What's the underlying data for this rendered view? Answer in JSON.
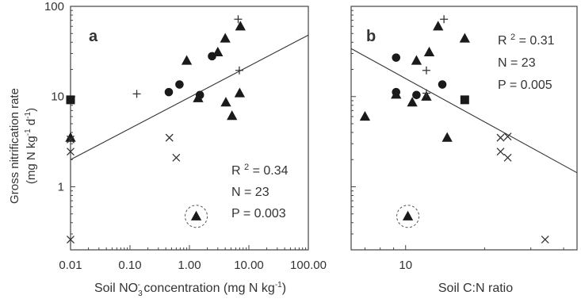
{
  "figure": {
    "shared_ylabel_line1": "Gross nitrification rate",
    "shared_ylabel_line2_parts": [
      "(mg N kg",
      "-1",
      " d",
      "-1",
      ")"
    ]
  },
  "chart_data": [
    {
      "type": "scatter",
      "panel_label": "a",
      "xscale": "log",
      "yscale": "log",
      "xlim": [
        0.01,
        100
      ],
      "ylim": [
        0.2,
        100
      ],
      "x_tick_labels": [
        "0.01",
        "0.10",
        "1.00",
        "10.00",
        "100.00"
      ],
      "x_tick_values": [
        0.01,
        0.1,
        1,
        10,
        100
      ],
      "y_tick_labels": [
        "1",
        "10",
        "100"
      ],
      "y_tick_values": [
        1,
        10,
        100
      ],
      "xlabel_parts": [
        "Soil NO",
        "3",
        "-",
        " concentration (mg N kg",
        "-1",
        ")"
      ],
      "ylabel": "Gross nitrification rate (mg N kg-1 d-1)",
      "stats": [
        "R2 = 0.34",
        "N = 23",
        "P = 0.003"
      ],
      "fit_line": [
        [
          0.01,
          2.0
        ],
        [
          100,
          48
        ]
      ],
      "circled_point": [
        1.3,
        0.47
      ],
      "points": [
        {
          "marker": "circle",
          "x": 0.45,
          "y": 11.2
        },
        {
          "marker": "circle",
          "x": 0.68,
          "y": 13.6
        },
        {
          "marker": "circle",
          "x": 1.5,
          "y": 10.4
        },
        {
          "marker": "circle",
          "x": 2.4,
          "y": 28
        },
        {
          "marker": "triangle",
          "x": 0.01,
          "y": 3.5
        },
        {
          "marker": "triangle",
          "x": 0.9,
          "y": 25
        },
        {
          "marker": "triangle",
          "x": 1.4,
          "y": 9.6
        },
        {
          "marker": "triangle",
          "x": 3.0,
          "y": 31
        },
        {
          "marker": "triangle",
          "x": 4.0,
          "y": 44
        },
        {
          "marker": "triangle",
          "x": 4.1,
          "y": 8.6
        },
        {
          "marker": "triangle",
          "x": 5.2,
          "y": 6.1
        },
        {
          "marker": "triangle",
          "x": 7.0,
          "y": 10.9
        },
        {
          "marker": "triangle",
          "x": 7.2,
          "y": 60
        },
        {
          "marker": "triangle",
          "x": 1.3,
          "y": 0.47
        },
        {
          "marker": "square",
          "x": 0.01,
          "y": 9.2
        },
        {
          "marker": "plus",
          "x": 0.13,
          "y": 10.7
        },
        {
          "marker": "plus",
          "x": 6.6,
          "y": 72
        },
        {
          "marker": "plus",
          "x": 6.9,
          "y": 19.5
        },
        {
          "marker": "cross",
          "x": 0.01,
          "y": 3.35
        },
        {
          "marker": "cross",
          "x": 0.01,
          "y": 2.45
        },
        {
          "marker": "cross",
          "x": 0.01,
          "y": 0.26
        },
        {
          "marker": "cross",
          "x": 0.46,
          "y": 3.5
        },
        {
          "marker": "cross",
          "x": 0.6,
          "y": 2.1
        }
      ]
    },
    {
      "type": "scatter",
      "panel_label": "b",
      "xscale": "log",
      "yscale": "log",
      "xlim": [
        6.2,
        45
      ],
      "ylim": [
        0.2,
        100
      ],
      "x_tick_labels": [
        "10"
      ],
      "x_tick_values": [
        10
      ],
      "xlabel": "Soil C:N ratio",
      "ylabel": "",
      "stats": [
        "R2 = 0.31",
        "N = 23",
        "P = 0.005"
      ],
      "fit_line": [
        [
          6.2,
          34
        ],
        [
          45,
          1.43
        ]
      ],
      "circled_point": [
        10.2,
        0.47
      ],
      "points": [
        {
          "marker": "circle",
          "x": 9.2,
          "y": 27
        },
        {
          "marker": "circle",
          "x": 9.2,
          "y": 11.2
        },
        {
          "marker": "circle",
          "x": 11.0,
          "y": 10.4
        },
        {
          "marker": "circle",
          "x": 13.8,
          "y": 13.6
        },
        {
          "marker": "triangle",
          "x": 7.0,
          "y": 6.0
        },
        {
          "marker": "triangle",
          "x": 9.2,
          "y": 10.5
        },
        {
          "marker": "triangle",
          "x": 10.6,
          "y": 8.6
        },
        {
          "marker": "triangle",
          "x": 11.0,
          "y": 25
        },
        {
          "marker": "triangle",
          "x": 12.0,
          "y": 10.0
        },
        {
          "marker": "triangle",
          "x": 12.3,
          "y": 31
        },
        {
          "marker": "triangle",
          "x": 13.3,
          "y": 60
        },
        {
          "marker": "triangle",
          "x": 14.4,
          "y": 3.5
        },
        {
          "marker": "triangle",
          "x": 16.8,
          "y": 44
        },
        {
          "marker": "triangle",
          "x": 10.2,
          "y": 0.47
        },
        {
          "marker": "square",
          "x": 16.8,
          "y": 9.2
        },
        {
          "marker": "plus",
          "x": 12.0,
          "y": 19.5
        },
        {
          "marker": "plus",
          "x": 14.0,
          "y": 72
        },
        {
          "marker": "plus",
          "x": 12.0,
          "y": 10.9
        },
        {
          "marker": "cross",
          "x": 23.0,
          "y": 3.5
        },
        {
          "marker": "cross",
          "x": 24.5,
          "y": 3.6
        },
        {
          "marker": "cross",
          "x": 23.0,
          "y": 2.45
        },
        {
          "marker": "cross",
          "x": 24.5,
          "y": 2.1
        },
        {
          "marker": "cross",
          "x": 34.0,
          "y": 0.26
        }
      ]
    }
  ]
}
